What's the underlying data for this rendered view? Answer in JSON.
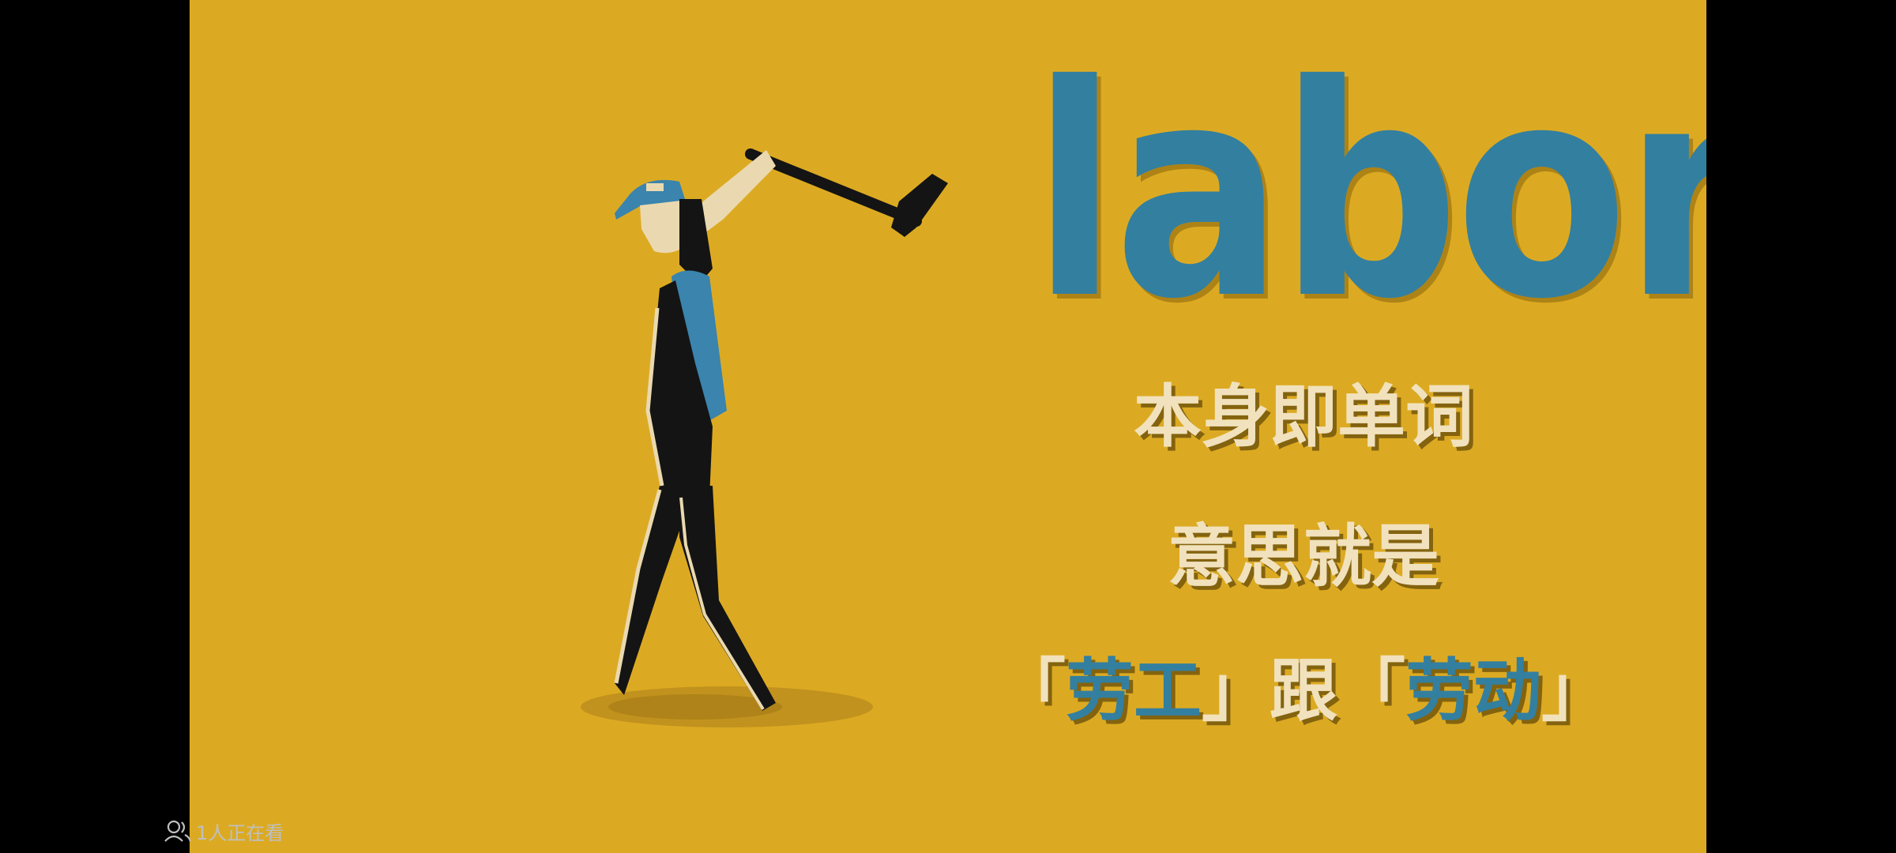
{
  "video": {
    "word": "labor",
    "lines": {
      "line1": "本身即单词",
      "line2": "意思就是",
      "line3": {
        "open1": "「",
        "word1": "劳工",
        "close1": "」",
        "joiner": "跟",
        "open2": "「",
        "word2": "劳动",
        "close2": "」"
      }
    }
  },
  "overlay": {
    "viewer_count": "1人正在看",
    "viewer_icon": "viewers-icon"
  },
  "colors": {
    "background": "#dcaa22",
    "word_blue": "#337fa0",
    "cream_text": "#f1e2bd",
    "outfit_black": "#141414",
    "cap_blue": "#3a84ad",
    "overlay_text": "#bfbfbf",
    "letterbox": "#000000"
  }
}
